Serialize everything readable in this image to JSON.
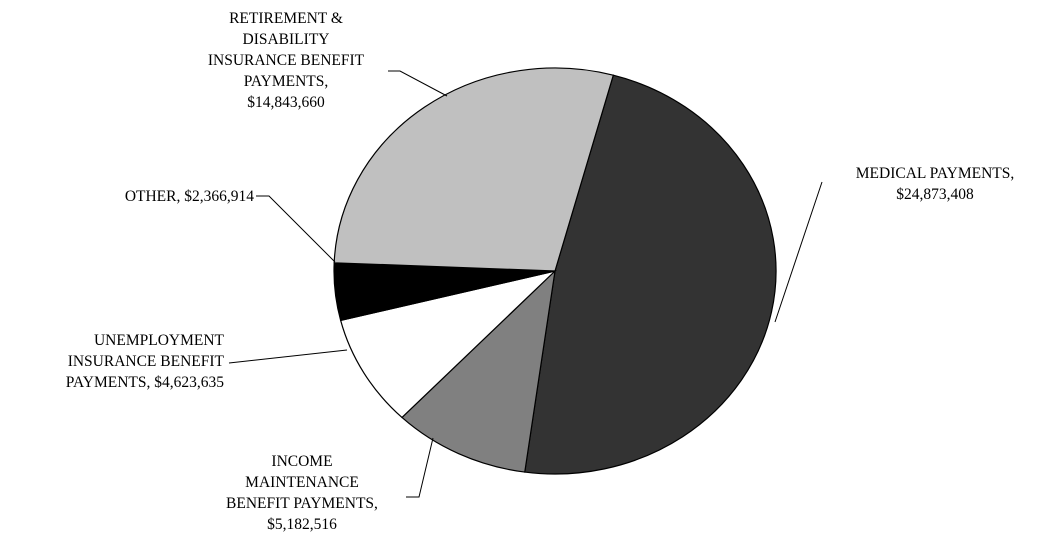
{
  "chart_data": {
    "type": "pie",
    "title": "",
    "slices": [
      {
        "name": "MEDICAL PAYMENTS",
        "value": 24873408,
        "label_lines": [
          "MEDICAL PAYMENTS,",
          "$24,873,408"
        ],
        "color": "#333333"
      },
      {
        "name": "INCOME MAINTENANCE BENEFIT PAYMENTS",
        "value": 5182516,
        "label_lines": [
          "INCOME",
          "MAINTENANCE",
          "BENEFIT PAYMENTS,",
          "$5,182,516"
        ],
        "color": "#808080"
      },
      {
        "name": "UNEMPLOYMENT INSURANCE BENEFIT PAYMENTS",
        "value": 4623635,
        "label_lines": [
          "UNEMPLOYMENT",
          "INSURANCE BENEFIT",
          "PAYMENTS,  $4,623,635"
        ],
        "color": "#ffffff"
      },
      {
        "name": "OTHER",
        "value": 2366914,
        "label_lines": [
          "OTHER,  $2,366,914"
        ],
        "color": "#000000"
      },
      {
        "name": "RETIREMENT & DISABILITY INSURANCE BENEFIT PAYMENTS",
        "value": 14843660,
        "label_lines": [
          "RETIREMENT &",
          "DISABILITY",
          "INSURANCE BENEFIT",
          "PAYMENTS,",
          "$14,843,660"
        ],
        "color": "#c0c0c0"
      }
    ]
  }
}
